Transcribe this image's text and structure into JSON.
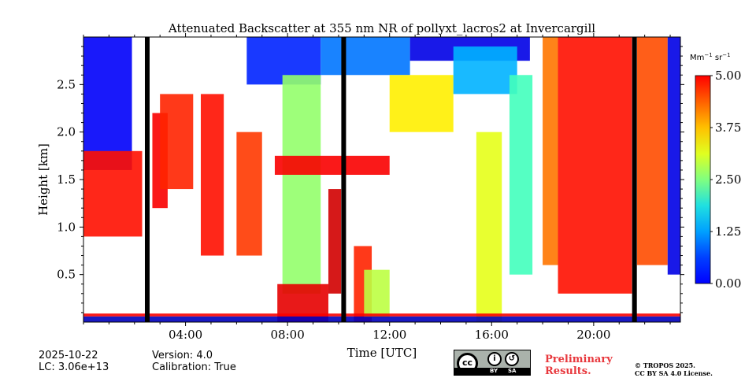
{
  "chart_data": {
    "type": "heatmap",
    "title": "Attenuated Backscatter at 355 nm NR of pollyxt_lacros2 at Invercargill",
    "xlabel": "Time [UTC]",
    "ylabel": "Height [km]",
    "x_ticks": [
      "04:00",
      "08:00",
      "12:00",
      "16:00",
      "20:00"
    ],
    "x_tick_hours": [
      4,
      8,
      12,
      16,
      20
    ],
    "xlim_hours": [
      0,
      23.4
    ],
    "y_ticks": [
      "0.5",
      "1.0",
      "1.5",
      "2.0",
      "2.5"
    ],
    "y_tick_values": [
      0.5,
      1.0,
      1.5,
      2.0,
      2.5
    ],
    "ylim_km": [
      0,
      3.0
    ],
    "colorbar": {
      "label_prefix": "Mm",
      "label_exp1": "−1",
      "label_mid": " sr",
      "label_exp2": "−1",
      "ticks": [
        "0.00",
        "1.25",
        "2.50",
        "3.75",
        "5.00"
      ],
      "tick_values": [
        0,
        1.25,
        2.5,
        3.75,
        5.0
      ],
      "range": [
        0,
        5
      ],
      "colormap": "jet"
    },
    "no_data_bars_hours": [
      2.5,
      10.2,
      21.6
    ],
    "signal_regions": [
      {
        "t0": 0.0,
        "t1": 1.9,
        "h0": 1.6,
        "h1": 3.0,
        "value": 0.6
      },
      {
        "t0": 0.0,
        "t1": 2.3,
        "h0": 0.9,
        "h1": 1.8,
        "value": 4.3
      },
      {
        "t0": 2.7,
        "t1": 3.3,
        "h0": 1.2,
        "h1": 2.2,
        "value": 4.4
      },
      {
        "t0": 3.0,
        "t1": 4.3,
        "h0": 1.4,
        "h1": 2.4,
        "value": 4.2
      },
      {
        "t0": 4.6,
        "t1": 5.5,
        "h0": 0.7,
        "h1": 2.4,
        "value": 4.3
      },
      {
        "t0": 6.0,
        "t1": 7.0,
        "h0": 0.7,
        "h1": 2.0,
        "value": 4.1
      },
      {
        "t0": 6.4,
        "t1": 9.3,
        "h0": 2.5,
        "h1": 3.0,
        "value": 0.8
      },
      {
        "t0": 7.8,
        "t1": 9.3,
        "h0": 0.3,
        "h1": 2.6,
        "value": 2.6
      },
      {
        "t0": 7.6,
        "t1": 9.6,
        "h0": 0.0,
        "h1": 0.4,
        "value": 4.5
      },
      {
        "t0": 9.6,
        "t1": 10.1,
        "h0": 0.3,
        "h1": 1.4,
        "value": 4.6
      },
      {
        "t0": 9.3,
        "t1": 12.8,
        "h0": 2.6,
        "h1": 3.0,
        "value": 1.2
      },
      {
        "t0": 7.5,
        "t1": 12.0,
        "h0": 1.55,
        "h1": 1.75,
        "value": 4.4
      },
      {
        "t0": 10.6,
        "t1": 11.3,
        "h0": 0.0,
        "h1": 0.8,
        "value": 4.2
      },
      {
        "t0": 11.0,
        "t1": 12.0,
        "h0": 0.05,
        "h1": 0.55,
        "value": 2.8
      },
      {
        "t0": 12.0,
        "t1": 14.5,
        "h0": 2.0,
        "h1": 2.6,
        "value": 3.2
      },
      {
        "t0": 12.8,
        "t1": 17.5,
        "h0": 2.75,
        "h1": 3.0,
        "value": 0.5
      },
      {
        "t0": 14.5,
        "t1": 17.0,
        "h0": 2.4,
        "h1": 2.9,
        "value": 1.5
      },
      {
        "t0": 15.4,
        "t1": 16.4,
        "h0": 0.0,
        "h1": 2.0,
        "value": 3.0
      },
      {
        "t0": 16.7,
        "t1": 17.6,
        "h0": 0.5,
        "h1": 2.6,
        "value": 2.2
      },
      {
        "t0": 18.0,
        "t1": 18.6,
        "h0": 0.6,
        "h1": 3.0,
        "value": 3.8
      },
      {
        "t0": 18.6,
        "t1": 21.5,
        "h0": 0.3,
        "h1": 3.0,
        "value": 4.3
      },
      {
        "t0": 21.7,
        "t1": 22.9,
        "h0": 0.6,
        "h1": 3.0,
        "value": 4.0
      },
      {
        "t0": 22.9,
        "t1": 23.4,
        "h0": 0.5,
        "h1": 3.0,
        "value": 0.5
      },
      {
        "t0": 0.0,
        "t1": 23.4,
        "h0": 0.0,
        "h1": 0.06,
        "value": 0.3
      },
      {
        "t0": 0.0,
        "t1": 23.4,
        "h0": 0.06,
        "h1": 0.09,
        "value": 4.4
      }
    ]
  },
  "footer": {
    "date": "2025-10-22",
    "lc": "LC: 3.06e+13",
    "version": "Version: 4.0",
    "calibration": "Calibration: True",
    "preliminary_line1": "Preliminary",
    "preliminary_line2": "Results.",
    "copyright_line1": "© TROPOS 2025.",
    "copyright_line2": "CC BY SA 4.0 License.",
    "license_badge": {
      "cc": "cc",
      "by": "BY",
      "sa": "SA"
    }
  },
  "colors": {
    "preliminary_text": "#e8383d",
    "no_data_bar": "#000000",
    "badge_bg": "#aab2ab"
  }
}
